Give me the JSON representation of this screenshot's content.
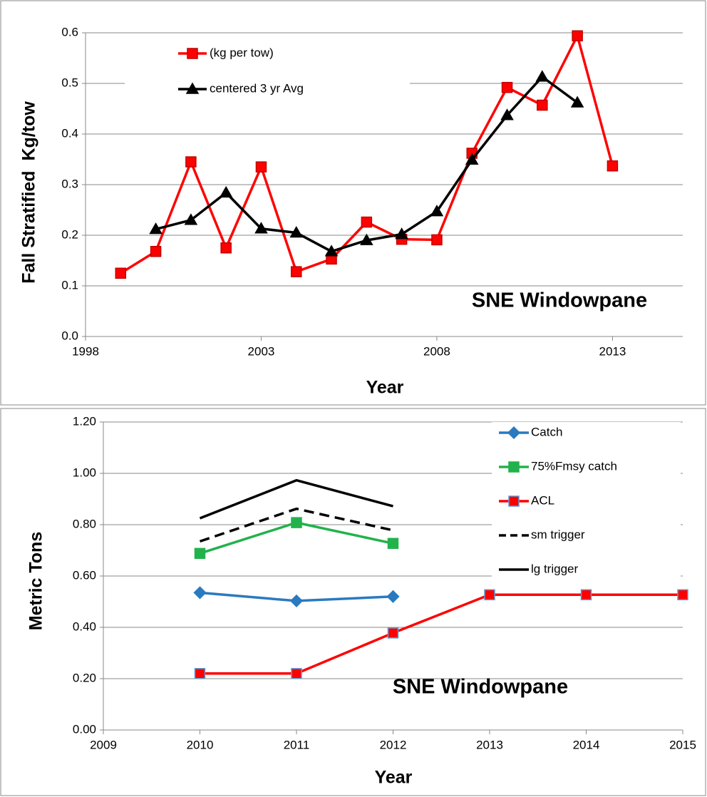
{
  "chart_data": [
    {
      "type": "line",
      "y_label": "Fall Stratified  Kg/tow",
      "x_label": "Year",
      "annotation": "SNE Windowpane",
      "x": [
        1999,
        2000,
        2001,
        2002,
        2003,
        2004,
        2005,
        2006,
        2007,
        2008,
        2009,
        2010,
        2011,
        2012,
        2013
      ],
      "xlim": [
        1998,
        2015
      ],
      "xticks": [
        1998,
        2003,
        2008,
        2013
      ],
      "ylim": [
        0,
        0.6
      ],
      "yticks": [
        {
          "value": 0,
          "label": "0.0"
        },
        0.1,
        0.2,
        0.3,
        0.4,
        0.5,
        0.6
      ],
      "grid": true,
      "series": [
        {
          "name": "(kg per tow)",
          "color": "#ff0000",
          "marker": "square",
          "marker_edge": "#c00000",
          "dash": false,
          "values": [
            0.125,
            0.168,
            0.345,
            0.175,
            0.335,
            0.128,
            0.153,
            0.226,
            0.192,
            0.191,
            0.362,
            0.492,
            0.457,
            0.594,
            0.337
          ]
        },
        {
          "name": "centered 3 yr Avg",
          "color": "#000000",
          "marker": "triangle",
          "marker_edge": "#000000",
          "dash": false,
          "values": [
            null,
            0.212,
            0.23,
            0.284,
            0.213,
            0.205,
            0.168,
            0.19,
            0.202,
            0.247,
            0.349,
            0.437,
            0.513,
            0.462,
            null
          ]
        }
      ]
    },
    {
      "type": "line",
      "y_label": "Metric Tons",
      "x_label": "Year",
      "annotation": "SNE Windowpane",
      "x": [
        2010,
        2011,
        2012,
        2013,
        2014,
        2015
      ],
      "xlim": [
        2009,
        2015
      ],
      "xticks": [
        2009,
        2010,
        2011,
        2012,
        2013,
        2014,
        2015
      ],
      "ylim": [
        0,
        1.2
      ],
      "yticks": [
        {
          "value": 0,
          "label": "0.00"
        },
        {
          "value": 0.2,
          "label": "0.20"
        },
        {
          "value": 0.4,
          "label": "0.40"
        },
        {
          "value": 0.6,
          "label": "0.60"
        },
        {
          "value": 0.8,
          "label": "0.80"
        },
        {
          "value": 1,
          "label": "1.00"
        },
        {
          "value": 1.2,
          "label": "1.20"
        }
      ],
      "grid": true,
      "series": [
        {
          "name": "Catch",
          "color": "#2a7ac0",
          "marker": "diamond",
          "marker_edge": "#2a7ac0",
          "dash": false,
          "values": [
            0.535,
            0.503,
            0.52,
            null,
            null,
            null
          ]
        },
        {
          "name": "75%Fmsy catch",
          "color": "#22b24c",
          "marker": "square",
          "marker_edge": "#22b24c",
          "dash": false,
          "values": [
            0.688,
            0.808,
            0.727,
            null,
            null,
            null
          ]
        },
        {
          "name": "ACL",
          "color": "#ff0000",
          "marker": "square",
          "marker_edge": "#5b9bd5",
          "dash": false,
          "values": [
            0.22,
            0.22,
            0.378,
            0.527,
            0.527,
            0.527
          ]
        },
        {
          "name": "sm trigger",
          "color": "#000000",
          "marker": "none",
          "marker_edge": "#000000",
          "dash": true,
          "values": [
            0.735,
            0.862,
            0.778,
            null,
            null,
            null
          ]
        },
        {
          "name": "lg trigger",
          "color": "#000000",
          "marker": "none",
          "marker_edge": "#000000",
          "dash": false,
          "values": [
            0.825,
            0.973,
            0.872,
            null,
            null,
            null
          ]
        }
      ]
    }
  ]
}
